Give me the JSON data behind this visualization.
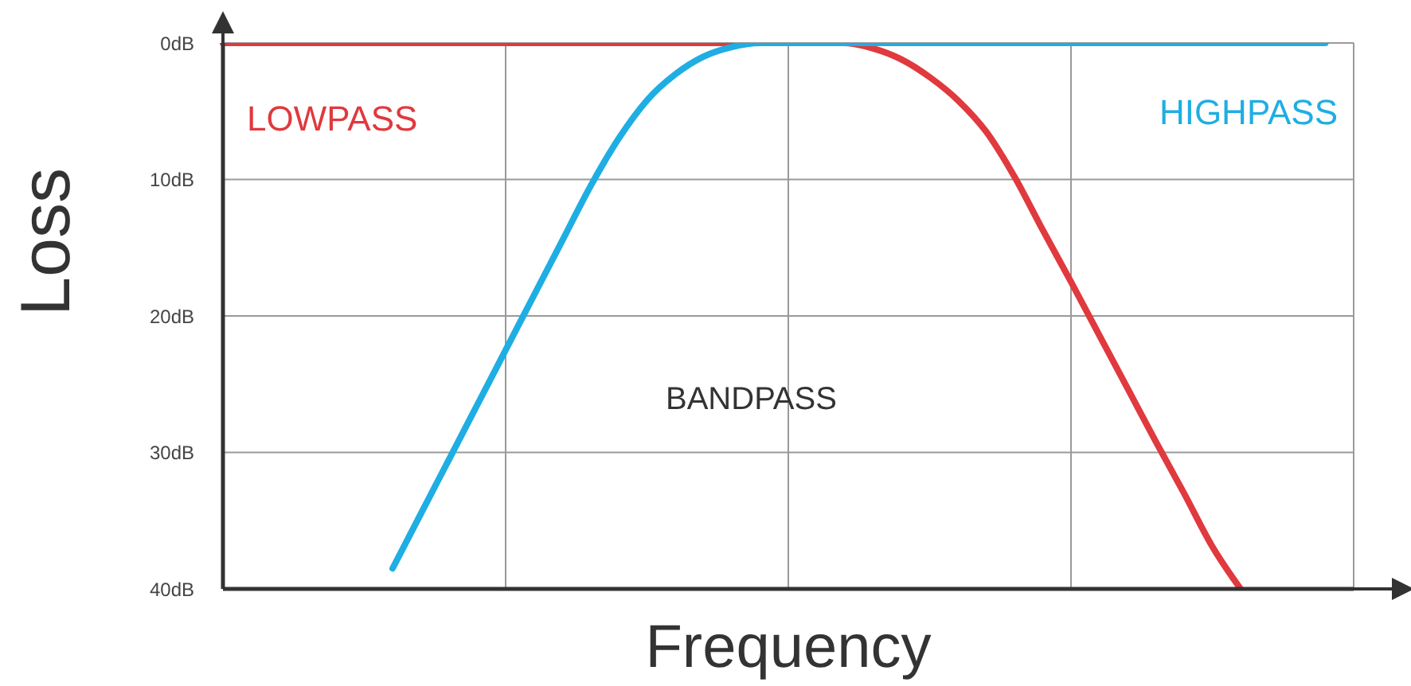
{
  "chart_data": {
    "type": "line",
    "ylabel": "Loss",
    "xlabel": "Frequency",
    "categories": [
      null,
      null,
      null,
      null,
      null,
      null,
      null,
      null,
      null,
      null,
      null,
      null,
      null,
      null,
      null,
      null,
      null,
      null,
      null,
      null,
      null,
      null,
      null,
      null,
      null,
      null,
      null,
      null,
      null,
      null,
      null,
      null,
      null,
      null,
      null,
      null,
      null,
      null,
      null,
      null,
      null
    ],
    "series": [
      {
        "name": "LOWPASS",
        "color": "#e0393e",
        "values": [
          0,
          0,
          0,
          0,
          0,
          0,
          0,
          0,
          0,
          0,
          0,
          0,
          0,
          0,
          0,
          0,
          0,
          0,
          0,
          0,
          0,
          0,
          0,
          0.4,
          1.2,
          2.5,
          4.2,
          6.5,
          9.8,
          13.7,
          17.5,
          21.4,
          25.3,
          29.2,
          33,
          36.9,
          40,
          null,
          null,
          null,
          null
        ]
      },
      {
        "name": "HIGHPASS",
        "color": "#1eaee3",
        "values": [
          null,
          null,
          null,
          null,
          null,
          null,
          38.5,
          34.5,
          30.5,
          26.5,
          22.5,
          18.5,
          14.5,
          10.5,
          7,
          4.2,
          2.3,
          1,
          0.3,
          0,
          0,
          0,
          0,
          0,
          0,
          0,
          0,
          0,
          0,
          0,
          0,
          0,
          0,
          0,
          0,
          0,
          0,
          0,
          0,
          0,
          null
        ]
      }
    ],
    "ylim": [
      40,
      0
    ],
    "yticks": [
      {
        "value": 0,
        "label": "0dB"
      },
      {
        "value": 10,
        "label": "10dB"
      },
      {
        "value": 20,
        "label": "20dB"
      },
      {
        "value": 30,
        "label": "30dB"
      },
      {
        "value": 40,
        "label": "40dB"
      }
    ],
    "grid": true,
    "annotations": [
      "BANDPASS"
    ]
  }
}
